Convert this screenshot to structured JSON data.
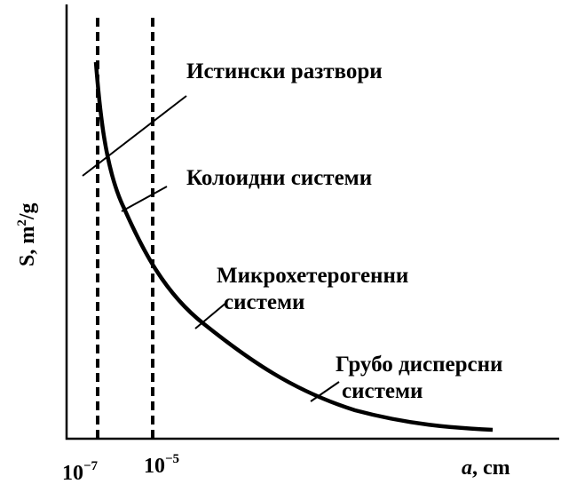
{
  "labels": [
    "Истински разтвори",
    "Колоидни системи",
    "Микрохетерогенни",
    "системи",
    "Грубо дисперсни",
    "системи"
  ],
  "y_axis": {
    "main": "S, m",
    "sup": "2",
    "rest": "/g"
  },
  "x_axis": {
    "var": "a",
    "unit": ", cm"
  },
  "x_ticks": [
    {
      "base": "10",
      "exponent": "−7"
    },
    {
      "base": "10",
      "exponent": "−5"
    }
  ]
}
